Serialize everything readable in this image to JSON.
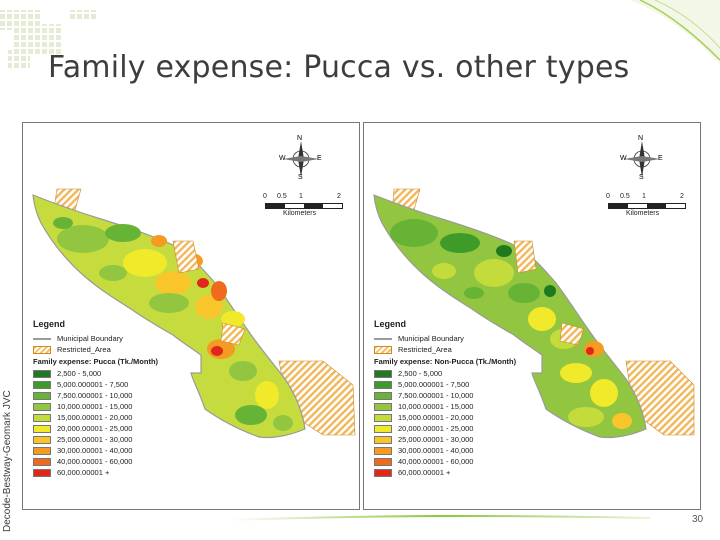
{
  "slide": {
    "title": "Family expense: Pucca vs. other types",
    "side_credit": "Decode-Bestway-Geomark JVC",
    "page_number": "30",
    "accent_color": "#8cc63f"
  },
  "maps": [
    {
      "id": "pucca",
      "north_arrow": {
        "n": "N",
        "s": "S",
        "e": "E",
        "w": "W"
      },
      "scale": {
        "ticks": [
          "0",
          "0.5",
          "1",
          "2"
        ],
        "unit": "Kilometers"
      },
      "legend": {
        "title": "Legend",
        "boundary_label": "Municipal Boundary",
        "restricted_label": "Restricted_Area",
        "subtitle": "Family expense: Pucca (Tk./Month)",
        "classes": [
          {
            "label": "2,500 - 5,000",
            "color": "#1f7a1f"
          },
          {
            "label": "5,000.000001 - 7,500",
            "color": "#3e9b2a"
          },
          {
            "label": "7,500.000001 - 10,000",
            "color": "#67b336"
          },
          {
            "label": "10,000.00001 - 15,000",
            "color": "#93c640"
          },
          {
            "label": "15,000.00001 - 20,000",
            "color": "#c3dc3c"
          },
          {
            "label": "20,000.00001 - 25,000",
            "color": "#f0ea2a"
          },
          {
            "label": "25,000.00001 - 30,000",
            "color": "#f8c62b"
          },
          {
            "label": "30,000.00001 - 40,000",
            "color": "#f59a22"
          },
          {
            "label": "40,000.00001 - 60,000",
            "color": "#ef6a1c"
          },
          {
            "label": "60,000.00001 +",
            "color": "#e0281a"
          }
        ]
      }
    },
    {
      "id": "non-pucca",
      "north_arrow": {
        "n": "N",
        "s": "S",
        "e": "E",
        "w": "W"
      },
      "scale": {
        "ticks": [
          "0",
          "0.5",
          "1",
          "2"
        ],
        "unit": "Kilometers"
      },
      "legend": {
        "title": "Legend",
        "boundary_label": "Municipal Boundary",
        "restricted_label": "Restricted_Area",
        "subtitle": "Family expense: Non-Pucca (Tk./Month)",
        "classes": [
          {
            "label": "2,500 - 5,000",
            "color": "#1f7a1f"
          },
          {
            "label": "5,000.000001 - 7,500",
            "color": "#3e9b2a"
          },
          {
            "label": "7,500.000001 - 10,000",
            "color": "#67b336"
          },
          {
            "label": "10,000.00001 - 15,000",
            "color": "#93c640"
          },
          {
            "label": "15,000.00001 - 20,000",
            "color": "#c3dc3c"
          },
          {
            "label": "20,000.00001 - 25,000",
            "color": "#f0ea2a"
          },
          {
            "label": "25,000.00001 - 30,000",
            "color": "#f8c62b"
          },
          {
            "label": "30,000.00001 - 40,000",
            "color": "#f59a22"
          },
          {
            "label": "40,000.00001 - 60,000",
            "color": "#ef6a1c"
          },
          {
            "label": "60,000.00001 +",
            "color": "#e0281a"
          }
        ]
      }
    }
  ]
}
